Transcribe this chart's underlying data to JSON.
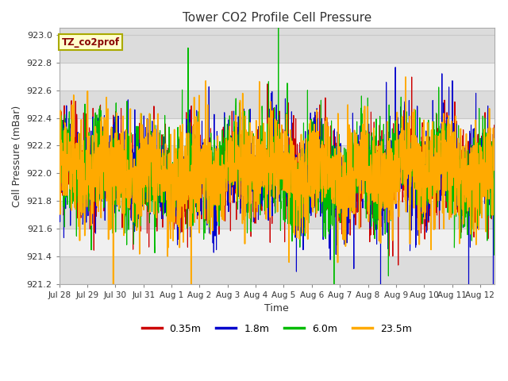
{
  "title": "Tower CO2 Profile Cell Pressure",
  "xlabel": "Time",
  "ylabel": "Cell Pressure (mBar)",
  "ylim": [
    921.2,
    923.05
  ],
  "xlim_days": 15.5,
  "series_labels": [
    "0.35m",
    "1.8m",
    "6.0m",
    "23.5m"
  ],
  "series_colors": [
    "#cc0000",
    "#0000cc",
    "#00bb00",
    "#ffaa00"
  ],
  "series_linewidths": [
    0.8,
    0.8,
    0.8,
    1.2
  ],
  "annotation_text": "TZ_co2prof",
  "annotation_color": "#880000",
  "annotation_bg": "#ffffcc",
  "annotation_edge": "#aaaa00",
  "plot_bg_dark": "#dcdcdc",
  "plot_bg_light": "#f0f0f0",
  "grid_color": "#c8c8c8",
  "fig_bg": "#ffffff",
  "yticks": [
    921.2,
    921.4,
    921.6,
    921.8,
    922.0,
    922.2,
    922.4,
    922.6,
    922.8,
    923.0
  ],
  "xtick_labels": [
    "Jul 28",
    "Jul 29",
    "Jul 30",
    "Jul 31",
    "Aug 1",
    "Aug 2",
    "Aug 3",
    "Aug 4",
    "Aug 5",
    "Aug 6",
    "Aug 7",
    "Aug 8",
    "Aug 9",
    "Aug 10",
    "Aug 11",
    "Aug 12"
  ],
  "xtick_positions": [
    0,
    1,
    2,
    3,
    4,
    5,
    6,
    7,
    8,
    9,
    10,
    11,
    12,
    13,
    14,
    15
  ],
  "base_pressure": 922.0,
  "n_points": 2000
}
